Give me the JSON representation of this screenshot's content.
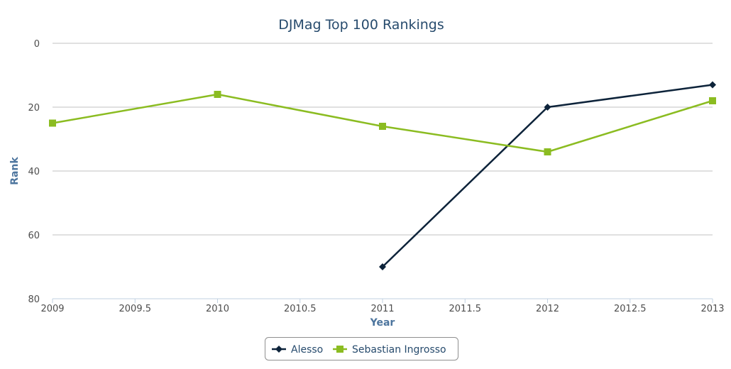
{
  "chart_data": {
    "type": "line",
    "title": "DJMag Top 100 Rankings",
    "xlabel": "Year",
    "ylabel": "Rank",
    "xlim": [
      2009,
      2013
    ],
    "ylim": [
      0,
      80
    ],
    "y_reversed": true,
    "x_ticks": [
      "2009",
      "2009.5",
      "2010",
      "2010.5",
      "2011",
      "2011.5",
      "2012",
      "2012.5",
      "2013"
    ],
    "y_ticks": [
      "0",
      "20",
      "40",
      "60",
      "80"
    ],
    "grid": "horizontal",
    "legend_position": "bottom-center",
    "series": [
      {
        "name": "Alesso",
        "color": "#0d233a",
        "marker": "diamond",
        "x": [
          2011,
          2012,
          2013
        ],
        "y": [
          70,
          20,
          13
        ]
      },
      {
        "name": "Sebastian Ingrosso",
        "color": "#8bbc21",
        "marker": "square",
        "x": [
          2009,
          2010,
          2011,
          2012,
          2013
        ],
        "y": [
          25,
          16,
          26,
          34,
          18
        ]
      }
    ]
  }
}
